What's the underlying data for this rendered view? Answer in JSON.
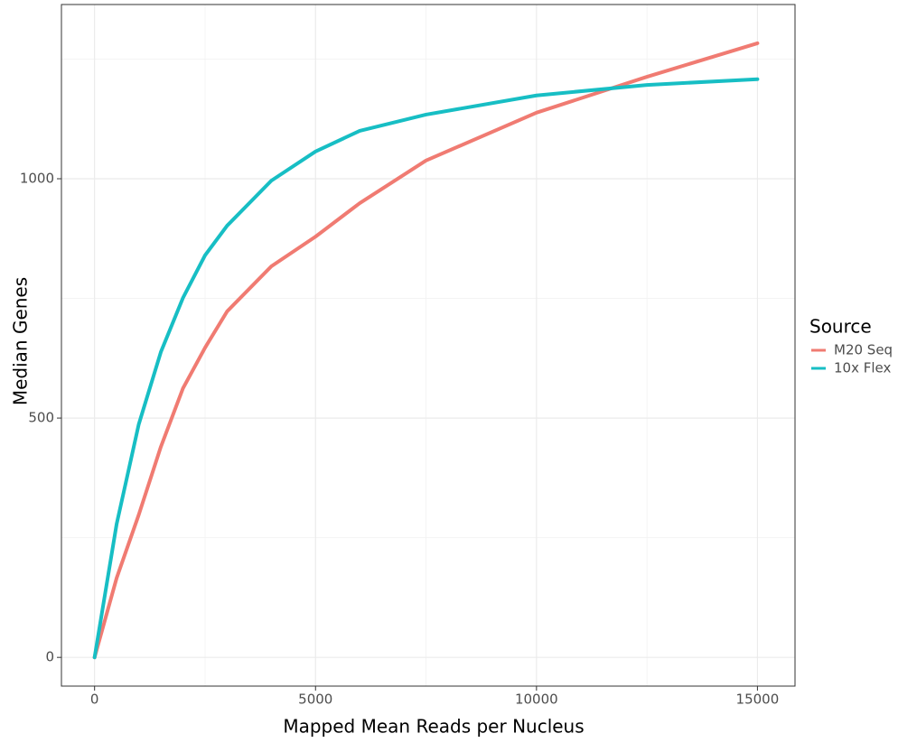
{
  "chart_data": {
    "type": "line",
    "x_label": "Mapped Mean Reads per Nucleus",
    "y_label": "Median Genes",
    "legend_title": "Source",
    "legend_position": "right",
    "x": [
      0,
      500,
      1000,
      1500,
      2000,
      2500,
      3000,
      4000,
      5000,
      6000,
      7500,
      10000,
      12500,
      15000
    ],
    "series": [
      {
        "name": "M20 Seq",
        "color": "#f07b72",
        "values": [
          0,
          166,
          298,
          440,
          562,
          647,
          723,
          817,
          879,
          949,
          1038,
          1138,
          1213,
          1283
        ]
      },
      {
        "name": "10x Flex",
        "color": "#17bec4",
        "values": [
          0,
          279,
          487,
          638,
          751,
          840,
          902,
          996,
          1057,
          1100,
          1134,
          1174,
          1196,
          1208
        ]
      }
    ],
    "xlim": [
      -750,
      15850
    ],
    "ylim": [
      -60,
      1364
    ],
    "xticks": [
      0,
      5000,
      10000,
      15000
    ],
    "yticks": [
      0,
      500,
      1000
    ],
    "x_minor_grid": [
      2500,
      7500,
      12500
    ],
    "y_minor_grid": [
      250,
      750,
      1250
    ],
    "grid": true
  }
}
